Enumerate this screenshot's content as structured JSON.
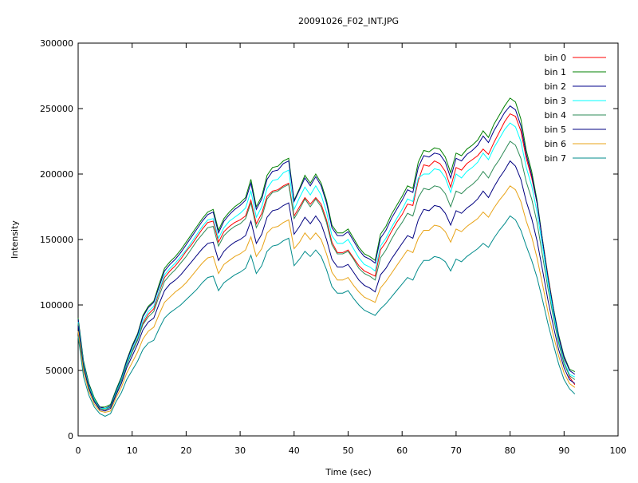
{
  "chart_data": {
    "type": "line",
    "title": "20091026_F02_INT.JPG",
    "xlabel": "Time (sec)",
    "ylabel": "Intensity",
    "xlim": [
      0,
      100
    ],
    "ylim": [
      0,
      300000
    ],
    "xticks": [
      0,
      10,
      20,
      30,
      40,
      50,
      60,
      70,
      80,
      90,
      100
    ],
    "yticks": [
      0,
      50000,
      100000,
      150000,
      200000,
      250000,
      300000
    ],
    "grid": false,
    "legend_position": "top-right",
    "x": [
      0,
      1,
      2,
      3,
      4,
      5,
      6,
      7,
      8,
      9,
      10,
      11,
      12,
      13,
      14,
      15,
      16,
      17,
      18,
      19,
      20,
      21,
      22,
      23,
      24,
      25,
      26,
      27,
      28,
      29,
      30,
      31,
      32,
      33,
      34,
      35,
      36,
      37,
      38,
      39,
      40,
      41,
      42,
      43,
      44,
      45,
      46,
      47,
      48,
      49,
      50,
      51,
      52,
      53,
      54,
      55,
      56,
      57,
      58,
      59,
      60,
      61,
      62,
      63,
      64,
      65,
      66,
      67,
      68,
      69,
      70,
      71,
      72,
      73,
      74,
      75,
      76,
      77,
      78,
      79,
      80,
      81,
      82,
      83,
      84,
      85,
      86,
      87,
      88,
      89,
      90,
      91,
      92
    ],
    "series": [
      {
        "name": "bin 0",
        "color": "#ff0000",
        "values": [
          88000,
          55000,
          38000,
          28000,
          21000,
          20000,
          22000,
          33000,
          43000,
          55000,
          65000,
          74000,
          86000,
          93000,
          97000,
          110000,
          121000,
          126000,
          130000,
          135000,
          141000,
          146000,
          152000,
          158000,
          163000,
          164000,
          148000,
          156000,
          160000,
          163000,
          165000,
          168000,
          180000,
          162000,
          170000,
          183000,
          187000,
          188000,
          191000,
          193000,
          168000,
          175000,
          182000,
          177000,
          182000,
          177000,
          165000,
          148000,
          140000,
          140000,
          142000,
          136000,
          130000,
          126000,
          124000,
          122000,
          142000,
          148000,
          156000,
          163000,
          169000,
          177000,
          176000,
          195000,
          207000,
          206000,
          210000,
          208000,
          202000,
          190000,
          205000,
          203000,
          208000,
          211000,
          214000,
          219000,
          215000,
          224000,
          232000,
          240000,
          246000,
          244000,
          233000,
          212000,
          197000,
          178000,
          150000,
          123000,
          98000,
          75000,
          58000,
          45000,
          39000
        ]
      },
      {
        "name": "bin 1",
        "color": "#008000",
        "values": [
          90000,
          57000,
          40000,
          29000,
          22000,
          22000,
          24000,
          35000,
          45000,
          58000,
          69000,
          78000,
          92000,
          99000,
          103000,
          116000,
          128000,
          133000,
          137000,
          142000,
          148000,
          154000,
          160000,
          166000,
          171000,
          173000,
          157000,
          166000,
          171000,
          175000,
          178000,
          182000,
          196000,
          175000,
          183000,
          199000,
          205000,
          206000,
          210000,
          212000,
          180000,
          189000,
          199000,
          193000,
          200000,
          193000,
          180000,
          161000,
          155000,
          155000,
          158000,
          151000,
          144000,
          139000,
          137000,
          134000,
          154000,
          160000,
          169000,
          176000,
          183000,
          191000,
          189000,
          209000,
          218000,
          217000,
          220000,
          219000,
          213000,
          201000,
          216000,
          214000,
          219000,
          222000,
          226000,
          233000,
          228000,
          238000,
          245000,
          252000,
          258000,
          255000,
          242000,
          218000,
          202000,
          180000,
          150000,
          122000,
          98000,
          77000,
          61000,
          51000,
          49000
        ]
      },
      {
        "name": "bin 2",
        "color": "#00008b",
        "values": [
          89000,
          56000,
          39000,
          28000,
          22000,
          21000,
          23000,
          34000,
          44000,
          57000,
          68000,
          77000,
          91000,
          98000,
          102000,
          114000,
          126000,
          131000,
          135000,
          140000,
          146000,
          152000,
          158000,
          164000,
          169000,
          171000,
          155000,
          164000,
          169000,
          173000,
          176000,
          180000,
          193000,
          173000,
          181000,
          196000,
          202000,
          203000,
          208000,
          210000,
          179000,
          188000,
          197000,
          191000,
          198000,
          191000,
          178000,
          159000,
          153000,
          153000,
          156000,
          149000,
          142000,
          137000,
          135000,
          132000,
          151000,
          157000,
          166000,
          173000,
          180000,
          188000,
          186000,
          205000,
          214000,
          213000,
          216000,
          215000,
          209000,
          197000,
          212000,
          210000,
          215000,
          218000,
          222000,
          229000,
          224000,
          233000,
          240000,
          247000,
          252000,
          249000,
          237000,
          215000,
          199000,
          178000,
          149000,
          121000,
          97000,
          76000,
          60000,
          50000,
          47000
        ]
      },
      {
        "name": "bin 3",
        "color": "#00ffff",
        "values": [
          87000,
          55000,
          38000,
          28000,
          21000,
          21000,
          22000,
          33000,
          43000,
          55000,
          66000,
          75000,
          88000,
          95000,
          99000,
          111000,
          123000,
          128000,
          132000,
          137000,
          142000,
          148000,
          154000,
          160000,
          165000,
          166000,
          151000,
          159000,
          164000,
          167000,
          170000,
          174000,
          187000,
          167000,
          175000,
          189000,
          195000,
          196000,
          201000,
          203000,
          173000,
          182000,
          190000,
          184000,
          191000,
          184000,
          171000,
          153000,
          147000,
          147000,
          150000,
          143000,
          136000,
          131000,
          129000,
          126000,
          145000,
          151000,
          159000,
          166000,
          173000,
          181000,
          179000,
          197000,
          200000,
          200000,
          204000,
          203000,
          197000,
          186000,
          200000,
          197000,
          202000,
          205000,
          209000,
          216000,
          211000,
          220000,
          227000,
          234000,
          239000,
          236000,
          225000,
          205000,
          191000,
          171000,
          145000,
          118000,
          94000,
          73000,
          57000,
          47000,
          45000
        ]
      },
      {
        "name": "bin 4",
        "color": "#2e8b57",
        "values": [
          86000,
          54000,
          37000,
          27000,
          21000,
          20000,
          22000,
          32000,
          42000,
          54000,
          64000,
          73000,
          85000,
          91000,
          95000,
          107000,
          118000,
          123000,
          127000,
          132000,
          137000,
          143000,
          149000,
          154000,
          159000,
          160000,
          145000,
          153000,
          157000,
          160000,
          162000,
          166000,
          178000,
          159000,
          167000,
          181000,
          186000,
          187000,
          190000,
          192000,
          166000,
          173000,
          181000,
          175000,
          181000,
          175000,
          163000,
          146000,
          139000,
          139000,
          141000,
          135000,
          128000,
          124000,
          122000,
          119000,
          136000,
          142000,
          150000,
          157000,
          163000,
          170000,
          168000,
          182000,
          189000,
          188000,
          191000,
          190000,
          185000,
          175000,
          187000,
          185000,
          189000,
          192000,
          196000,
          202000,
          197000,
          205000,
          211000,
          218000,
          225000,
          222000,
          212000,
          194000,
          181000,
          163000,
          138000,
          113000,
          91000,
          71000,
          55000,
          46000,
          43000
        ]
      },
      {
        "name": "bin 5",
        "color": "#000080",
        "values": [
          84000,
          52000,
          36000,
          26000,
          20000,
          19000,
          21000,
          31000,
          40000,
          52000,
          61000,
          70000,
          81000,
          87000,
          90000,
          101000,
          111000,
          116000,
          119000,
          123000,
          128000,
          133000,
          138000,
          143000,
          147000,
          148000,
          134000,
          141000,
          145000,
          148000,
          150000,
          153000,
          164000,
          147000,
          154000,
          167000,
          172000,
          173000,
          176000,
          178000,
          154000,
          160000,
          167000,
          162000,
          168000,
          162000,
          150000,
          135000,
          129000,
          129000,
          131000,
          125000,
          119000,
          115000,
          113000,
          110000,
          123000,
          128000,
          135000,
          141000,
          147000,
          153000,
          151000,
          165000,
          173000,
          172000,
          176000,
          175000,
          170000,
          161000,
          172000,
          170000,
          174000,
          177000,
          181000,
          187000,
          182000,
          190000,
          197000,
          203000,
          210000,
          206000,
          196000,
          179000,
          166000,
          149000,
          127000,
          104000,
          84000,
          66000,
          52000,
          43000,
          40000
        ]
      },
      {
        "name": "bin 6",
        "color": "#e8a317",
        "values": [
          80000,
          49000,
          34000,
          24000,
          19000,
          18000,
          19000,
          29000,
          37000,
          48000,
          56000,
          64000,
          74000,
          80000,
          83000,
          93000,
          102000,
          106000,
          110000,
          113000,
          117000,
          122000,
          127000,
          132000,
          136000,
          137000,
          124000,
          131000,
          134000,
          137000,
          139000,
          142000,
          152000,
          137000,
          143000,
          155000,
          159000,
          160000,
          163000,
          165000,
          143000,
          148000,
          155000,
          150000,
          155000,
          150000,
          139000,
          125000,
          119000,
          119000,
          121000,
          115000,
          110000,
          106000,
          104000,
          102000,
          113000,
          118000,
          124000,
          130000,
          136000,
          142000,
          140000,
          151000,
          157000,
          157000,
          161000,
          160000,
          156000,
          148000,
          158000,
          156000,
          160000,
          163000,
          166000,
          171000,
          167000,
          174000,
          180000,
          185000,
          191000,
          188000,
          179000,
          164000,
          152000,
          136000,
          116000,
          95000,
          77000,
          61000,
          48000,
          40000,
          37000
        ]
      },
      {
        "name": "bin 7",
        "color": "#008b8b",
        "values": [
          76000,
          45000,
          31000,
          22000,
          17000,
          15000,
          17000,
          26000,
          33000,
          43000,
          50000,
          57000,
          66000,
          71000,
          73000,
          82000,
          90000,
          94000,
          97000,
          100000,
          104000,
          108000,
          112000,
          117000,
          121000,
          122000,
          111000,
          117000,
          120000,
          123000,
          125000,
          128000,
          138000,
          124000,
          130000,
          141000,
          145000,
          146000,
          149000,
          151000,
          130000,
          135000,
          141000,
          137000,
          142000,
          137000,
          127000,
          114000,
          109000,
          109000,
          111000,
          105000,
          100000,
          96000,
          94000,
          92000,
          97000,
          101000,
          106000,
          111000,
          116000,
          121000,
          119000,
          128000,
          134000,
          134000,
          137000,
          136000,
          133000,
          126000,
          135000,
          133000,
          137000,
          140000,
          143000,
          147000,
          144000,
          151000,
          157000,
          162000,
          168000,
          165000,
          157000,
          145000,
          134000,
          121000,
          104000,
          86000,
          70000,
          55000,
          43000,
          36000,
          32000
        ]
      }
    ]
  }
}
